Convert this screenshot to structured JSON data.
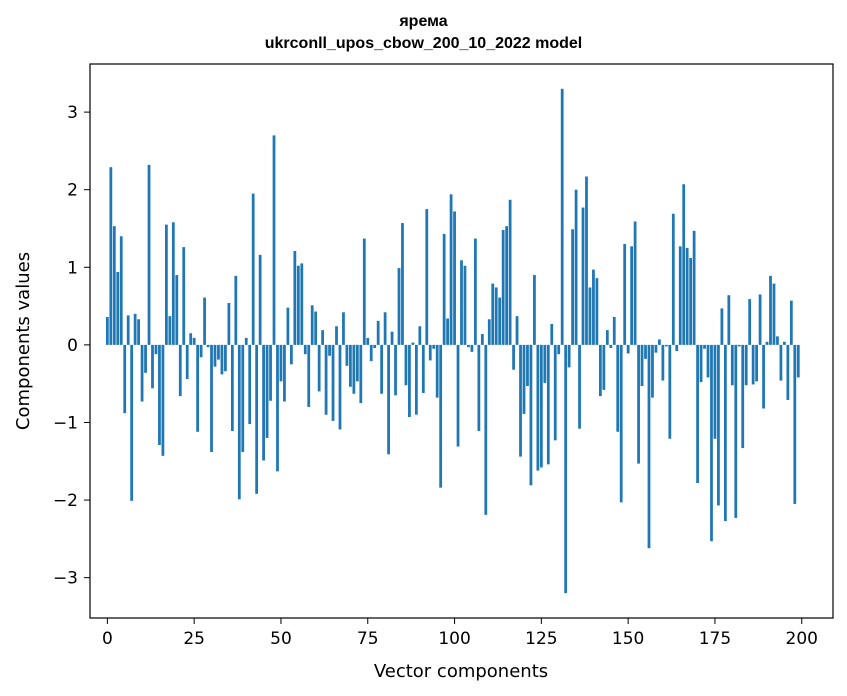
{
  "title_line1": "ярема",
  "title_line2": "ukrconll_upos_cbow_200_10_2022 model",
  "chart_data": {
    "type": "bar",
    "title": "ярема ukrconll_upos_cbow_200_10_2022 model",
    "xlabel": "Vector components",
    "ylabel": "Components values",
    "xlim": [
      -5,
      209
    ],
    "ylim": [
      -3.52,
      3.62
    ],
    "xticks": [
      0,
      25,
      50,
      75,
      100,
      125,
      150,
      175,
      200
    ],
    "yticks": [
      -3,
      -2,
      -1,
      0,
      1,
      2,
      3
    ],
    "ytick_labels": [
      "−3",
      "−2",
      "−1",
      "0",
      "1",
      "2",
      "3"
    ],
    "bar_color": "#1f77b4",
    "grid": false,
    "values": [
      0.36,
      2.29,
      1.53,
      0.94,
      1.4,
      -0.88,
      0.38,
      -2.01,
      0.4,
      0.33,
      -0.73,
      -0.36,
      2.32,
      -0.56,
      -0.12,
      -1.29,
      -1.43,
      1.55,
      0.37,
      1.58,
      0.9,
      -0.66,
      1.26,
      -0.44,
      0.15,
      0.09,
      -1.12,
      -0.16,
      0.61,
      -0.03,
      -1.38,
      -0.28,
      -0.19,
      -0.38,
      -0.34,
      0.54,
      -1.11,
      0.89,
      -1.99,
      -1.38,
      0.09,
      -1.02,
      1.95,
      -1.92,
      1.16,
      -1.49,
      -1.2,
      -0.72,
      2.7,
      -1.63,
      -0.47,
      -0.73,
      0.48,
      -0.25,
      1.21,
      1.02,
      1.05,
      -0.12,
      -0.8,
      0.51,
      0.43,
      -0.6,
      0.19,
      -0.9,
      -0.14,
      -0.98,
      0.24,
      -1.09,
      0.42,
      -0.27,
      -0.54,
      -0.63,
      -0.47,
      -0.75,
      1.37,
      0.09,
      -0.21,
      -0.04,
      0.31,
      -0.63,
      0.42,
      -1.41,
      0.17,
      -0.65,
      0.99,
      1.57,
      -0.52,
      -0.93,
      0.03,
      -0.9,
      0.24,
      -0.62,
      1.75,
      -0.2,
      -0.05,
      -0.68,
      -1.84,
      1.43,
      0.34,
      1.94,
      1.72,
      -1.31,
      1.09,
      1.02,
      -0.03,
      -0.09,
      1.37,
      -1.11,
      0.14,
      -2.19,
      0.33,
      0.79,
      0.74,
      0.61,
      1.48,
      1.53,
      1.87,
      -0.32,
      0.37,
      -1.44,
      -0.89,
      -0.53,
      -1.81,
      0.9,
      -1.62,
      -1.58,
      -0.49,
      -1.54,
      0.27,
      -1.23,
      -0.12,
      3.3,
      -3.2,
      -0.29,
      1.49,
      2.0,
      -1.08,
      1.77,
      2.17,
      0.74,
      0.97,
      0.86,
      -0.66,
      -0.58,
      0.19,
      -0.04,
      0.36,
      -1.12,
      -2.03,
      1.3,
      -0.11,
      1.27,
      1.59,
      -1.53,
      -0.53,
      -0.18,
      -2.62,
      -0.68,
      -0.1,
      0.07,
      -0.46,
      -0.02,
      -1.21,
      1.69,
      -0.08,
      1.27,
      2.07,
      1.25,
      1.12,
      1.47,
      -1.78,
      -0.48,
      -0.05,
      -0.42,
      -2.53,
      -1.21,
      -2.07,
      0.47,
      -2.27,
      0.64,
      -0.52,
      -2.23,
      -0.02,
      -1.33,
      -0.52,
      0.59,
      -0.51,
      -0.47,
      0.65,
      -0.82,
      0.04,
      0.89,
      0.79,
      0.11,
      -0.46,
      0.04,
      -0.71,
      0.57,
      -2.05,
      -0.42
    ]
  }
}
